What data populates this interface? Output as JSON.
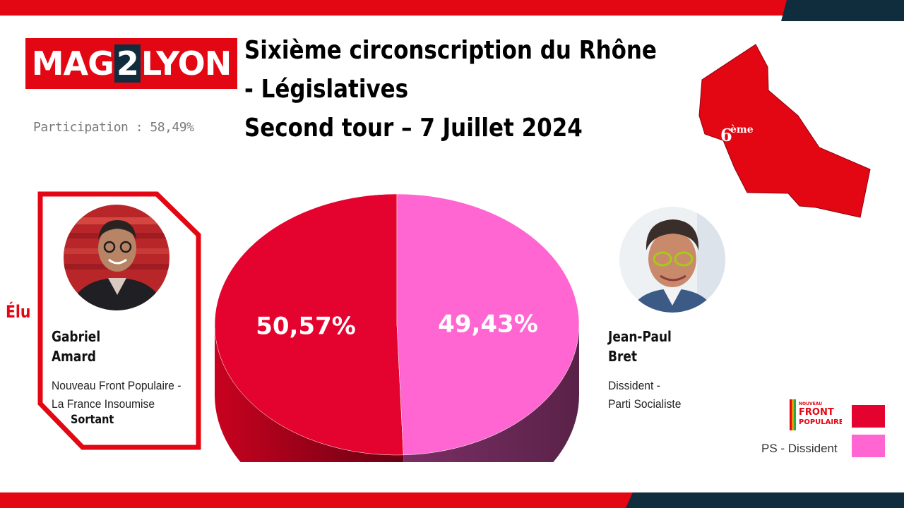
{
  "brand": {
    "logo_left": "MAG",
    "logo_mid": "2",
    "logo_right": "LYON",
    "colors": {
      "red": "#e30613",
      "dark": "#0f2d3d",
      "pink": "#ff66d1"
    }
  },
  "title": {
    "line1": "Sixième circonscription du Rhône",
    "line2": "-  Législatives",
    "line3": "Second tour – 7 Juillet 2024"
  },
  "participation": "Participation : 58,49%",
  "map": {
    "label": "6",
    "label_sup": "ème",
    "color": "#e30613"
  },
  "winner": {
    "badge": "Élu",
    "name_line1": "Gabriel",
    "name_line2": "Amard",
    "party_line1": "Nouveau Front Populaire -",
    "party_line2": "La France Insoumise",
    "status": "Sortant",
    "photo_icon": "candidate-photo"
  },
  "runner_up": {
    "name_line1": "Jean-Paul",
    "name_line2": "Bret",
    "party_line1": "Dissident -",
    "party_line2": "Parti Socialiste",
    "photo_icon": "candidate-photo"
  },
  "chart_data": {
    "type": "pie",
    "title": "",
    "slices": [
      {
        "label": "Gabriel Amard",
        "value": 50.57,
        "display": "50,57%",
        "color": "#e4022e"
      },
      {
        "label": "Jean-Paul Bret",
        "value": 49.43,
        "display": "49,43%",
        "color": "#ff66d1"
      }
    ],
    "style": "3d"
  },
  "legend": {
    "nfp_logo_top": "NOUVEAU",
    "nfp_logo_mid": "FRONT",
    "nfp_logo_bot": "POPULAIRE",
    "nfp_color": "#e4022e",
    "ps_label": "PS - Dissident",
    "ps_color": "#ff66d1"
  }
}
